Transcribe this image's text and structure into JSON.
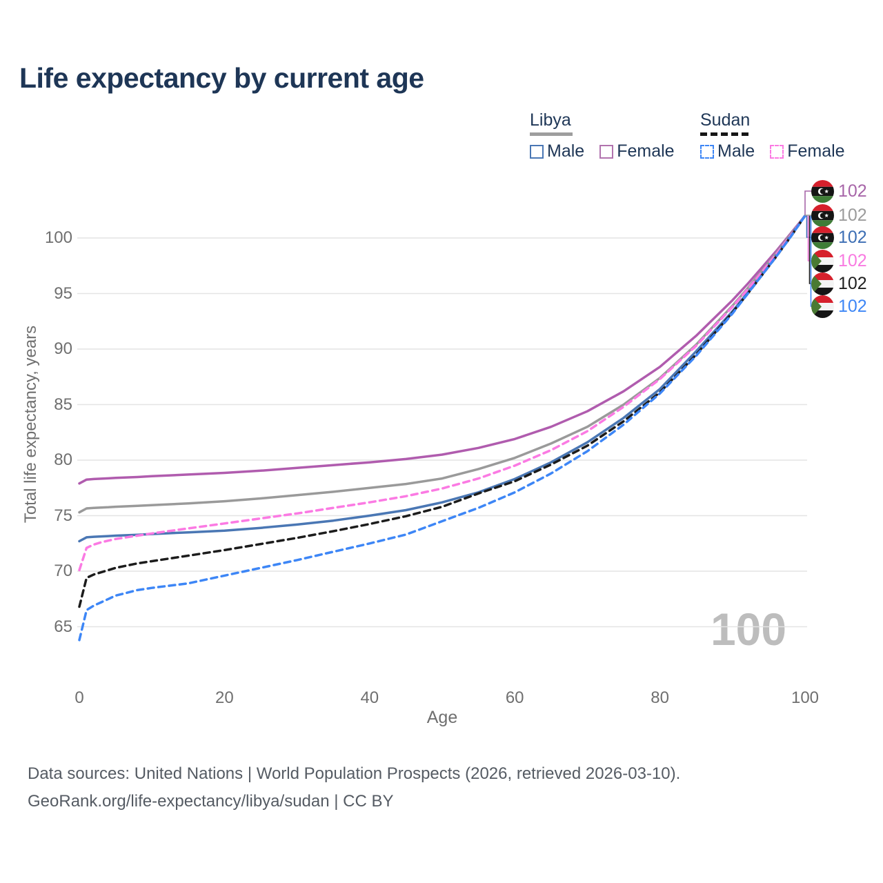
{
  "title": "Life expectancy by current age",
  "legend": {
    "groups": [
      {
        "label": "Libya",
        "line_style": "solid",
        "underline_color": "#9e9e9e",
        "items": [
          {
            "label": "Male",
            "color": "#4a77b4",
            "dashed": false
          },
          {
            "label": "Female",
            "color": "#b173ae",
            "dashed": false
          }
        ]
      },
      {
        "label": "Sudan",
        "line_style": "dashed",
        "underline_color": "#161616",
        "items": [
          {
            "label": "Male",
            "color": "#3d86f6",
            "dashed": true
          },
          {
            "label": "Female",
            "color": "#fb7ae3",
            "dashed": true
          }
        ]
      }
    ]
  },
  "chart_data": {
    "type": "line",
    "title": "Life expectancy by current age",
    "xlabel": "Age",
    "ylabel": "Total life expectancy, years",
    "x_ticks": [
      0,
      20,
      40,
      60,
      80,
      100
    ],
    "y_ticks": [
      65,
      70,
      75,
      80,
      85,
      90,
      95,
      100
    ],
    "xlim": [
      0,
      100
    ],
    "ylim": [
      63,
      103
    ],
    "grid": "horizontal",
    "legend_position": "top-right",
    "x": [
      0,
      1,
      2,
      3,
      4,
      5,
      8,
      10,
      15,
      20,
      25,
      30,
      35,
      40,
      45,
      50,
      55,
      60,
      65,
      70,
      75,
      80,
      85,
      90,
      92,
      94,
      96,
      98,
      100
    ],
    "series": [
      {
        "name": "Libya Female",
        "country": "Libya",
        "sex": "Female",
        "color": "#b05cae",
        "dash": "solid",
        "end_value": 102,
        "values": [
          77.9,
          78.25,
          78.3,
          78.33,
          78.36,
          78.4,
          78.48,
          78.55,
          78.7,
          78.85,
          79.05,
          79.3,
          79.55,
          79.8,
          80.1,
          80.5,
          81.1,
          81.9,
          83.0,
          84.4,
          86.2,
          88.4,
          91.2,
          94.4,
          95.8,
          97.3,
          98.8,
          100.4,
          102
        ]
      },
      {
        "name": "Libya Both sexes",
        "country": "Libya",
        "sex": "Both",
        "color": "#9a9a9a",
        "dash": "solid",
        "end_value": 102,
        "values": [
          75.3,
          75.65,
          75.7,
          75.73,
          75.76,
          75.8,
          75.88,
          75.95,
          76.1,
          76.3,
          76.55,
          76.85,
          77.15,
          77.5,
          77.85,
          78.35,
          79.2,
          80.2,
          81.5,
          83.0,
          85.0,
          87.4,
          90.4,
          93.9,
          95.4,
          97.0,
          98.6,
          100.3,
          102
        ]
      },
      {
        "name": "Libya Male",
        "country": "Libya",
        "sex": "Male",
        "color": "#4a77b4",
        "dash": "solid",
        "end_value": 102,
        "values": [
          72.7,
          73.05,
          73.1,
          73.13,
          73.16,
          73.2,
          73.28,
          73.35,
          73.5,
          73.65,
          73.9,
          74.2,
          74.55,
          75.0,
          75.5,
          76.2,
          77.1,
          78.3,
          79.8,
          81.6,
          83.8,
          86.4,
          89.8,
          93.4,
          95.0,
          96.7,
          98.4,
          100.2,
          102
        ]
      },
      {
        "name": "Sudan Female",
        "country": "Sudan",
        "sex": "Female",
        "color": "#fb7ae3",
        "dash": "dashed",
        "end_value": 102,
        "values": [
          70.1,
          72.1,
          72.4,
          72.6,
          72.75,
          72.9,
          73.2,
          73.4,
          73.85,
          74.3,
          74.75,
          75.2,
          75.7,
          76.2,
          76.75,
          77.45,
          78.35,
          79.5,
          80.9,
          82.6,
          84.8,
          87.3,
          90.3,
          93.8,
          95.3,
          96.9,
          98.5,
          100.2,
          102
        ]
      },
      {
        "name": "Sudan Both sexes",
        "country": "Sudan",
        "sex": "Both",
        "color": "#1c1c1c",
        "dash": "dashed",
        "end_value": 102,
        "values": [
          66.8,
          69.4,
          69.7,
          69.9,
          70.1,
          70.3,
          70.7,
          70.9,
          71.4,
          71.9,
          72.45,
          73.0,
          73.6,
          74.25,
          74.95,
          75.8,
          77.0,
          78.1,
          79.6,
          81.3,
          83.5,
          86.1,
          89.5,
          93.3,
          94.9,
          96.6,
          98.3,
          100.1,
          102
        ]
      },
      {
        "name": "Sudan Male",
        "country": "Sudan",
        "sex": "Male",
        "color": "#3d86f6",
        "dash": "dashed",
        "end_value": 102,
        "values": [
          63.8,
          66.5,
          66.9,
          67.2,
          67.5,
          67.8,
          68.3,
          68.5,
          68.9,
          69.6,
          70.3,
          71.0,
          71.75,
          72.5,
          73.3,
          74.5,
          75.7,
          77.1,
          78.8,
          80.8,
          83.2,
          86.0,
          89.4,
          93.2,
          94.9,
          96.6,
          98.3,
          100.1,
          102
        ]
      }
    ]
  },
  "end_labels": {
    "rows": [
      {
        "flag": "libya",
        "value": "102",
        "color": "#a765a8"
      },
      {
        "flag": "libya",
        "value": "102",
        "color": "#9b9b9b"
      },
      {
        "flag": "libya",
        "value": "102",
        "color": "#3c6eb4"
      },
      {
        "flag": "sudan",
        "value": "102",
        "color": "#f97ae1"
      },
      {
        "flag": "sudan",
        "value": "102",
        "color": "#1f1f1f"
      },
      {
        "flag": "sudan",
        "value": "102",
        "color": "#3d86f6"
      }
    ]
  },
  "axes": {
    "x": {
      "label": "Age"
    },
    "y": {
      "label": "Total life expectancy, years"
    }
  },
  "watermark": "100",
  "footer": {
    "line1": "Data sources: United Nations | World Population Prospects (2026, retrieved 2026-03-10).",
    "line2": "GeoRank.org/life-expectancy/libya/sudan | CC BY"
  }
}
